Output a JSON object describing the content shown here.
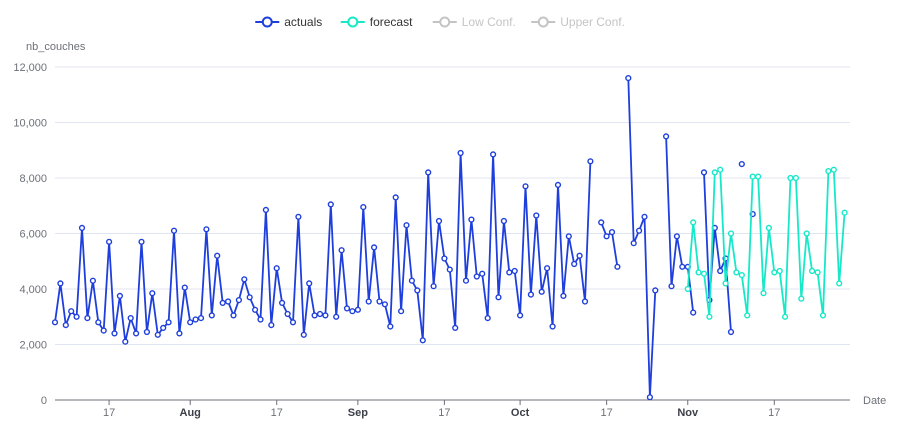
{
  "chart_data": {
    "type": "line",
    "ylabel": "nb_couches",
    "xlabel": "Date",
    "ylim": [
      0,
      12000
    ],
    "yticks": [
      {
        "value": 0,
        "label": "0"
      },
      {
        "value": 2000,
        "label": "2,000"
      },
      {
        "value": 4000,
        "label": "4,000"
      },
      {
        "value": 6000,
        "label": "6,000"
      },
      {
        "value": 8000,
        "label": "8,000"
      },
      {
        "value": 10000,
        "label": "10,000"
      },
      {
        "value": 12000,
        "label": "12,000"
      }
    ],
    "xlim": [
      "2023-07-07",
      "2023-12-01"
    ],
    "xticks": [
      {
        "date": "2023-07-17",
        "label": "17",
        "bold": false
      },
      {
        "date": "2023-08-01",
        "label": "Aug",
        "bold": true
      },
      {
        "date": "2023-08-17",
        "label": "17",
        "bold": false
      },
      {
        "date": "2023-09-01",
        "label": "Sep",
        "bold": true
      },
      {
        "date": "2023-09-17",
        "label": "17",
        "bold": false
      },
      {
        "date": "2023-10-01",
        "label": "Oct",
        "bold": true
      },
      {
        "date": "2023-10-17",
        "label": "17",
        "bold": false
      },
      {
        "date": "2023-11-01",
        "label": "Nov",
        "bold": true
      },
      {
        "date": "2023-11-17",
        "label": "17",
        "bold": false
      }
    ],
    "grid": true,
    "legend_position": "top-center",
    "series": [
      {
        "name": "actuals",
        "color": "#1f3fdc",
        "active": true,
        "start": "2023-07-07",
        "values": [
          2800,
          4200,
          2700,
          3200,
          3000,
          6200,
          2950,
          4300,
          2800,
          2500,
          5700,
          2400,
          3750,
          2100,
          2950,
          2400,
          5700,
          2450,
          3850,
          2350,
          2600,
          2800,
          6100,
          2400,
          4050,
          2800,
          2900,
          2950,
          6150,
          3050,
          5200,
          3500,
          3550,
          3050,
          3600,
          4350,
          3700,
          3250,
          2900,
          6850,
          2700,
          4750,
          3500,
          3100,
          2800,
          6600,
          2350,
          4200,
          3050,
          3100,
          3050,
          7050,
          3000,
          5400,
          3300,
          3200,
          3250,
          6950,
          3550,
          5500,
          3550,
          3450,
          2650,
          7300,
          3200,
          6300,
          4300,
          3950,
          2150,
          8200,
          4100,
          6450,
          5100,
          4700,
          2600,
          8900,
          4300,
          6500,
          4450,
          4550,
          2950,
          8850,
          3700,
          6450,
          4600,
          4650,
          3050,
          7700,
          3800,
          6650,
          3900,
          4750,
          2650,
          7750,
          3750,
          5900,
          4900,
          5200,
          3550,
          8600,
          null,
          6400,
          5900,
          6050,
          4800,
          null,
          11600,
          5650,
          6100,
          6600,
          100,
          3950,
          null,
          9500,
          4100,
          5900,
          4800,
          4800,
          3150,
          null,
          8200,
          3600,
          6200,
          4650,
          5100,
          2450,
          null,
          8500,
          null,
          6700
        ]
      },
      {
        "name": "forecast",
        "color": "#17e8c8",
        "active": true,
        "start": "2023-11-01",
        "values": [
          4000,
          6400,
          4600,
          4550,
          3000,
          8200,
          8300,
          4200,
          6000,
          4600,
          4500,
          3050,
          8050,
          8050,
          3850,
          6200,
          4600,
          4650,
          3000,
          8000,
          8000,
          3650,
          6000,
          4650,
          4600,
          3050,
          8250,
          8300,
          4200,
          6750
        ]
      },
      {
        "name": "Low Conf.",
        "color": "#c4c4c4",
        "active": false,
        "values": []
      },
      {
        "name": "Upper Conf.",
        "color": "#c4c4c4",
        "active": false,
        "values": []
      }
    ]
  }
}
